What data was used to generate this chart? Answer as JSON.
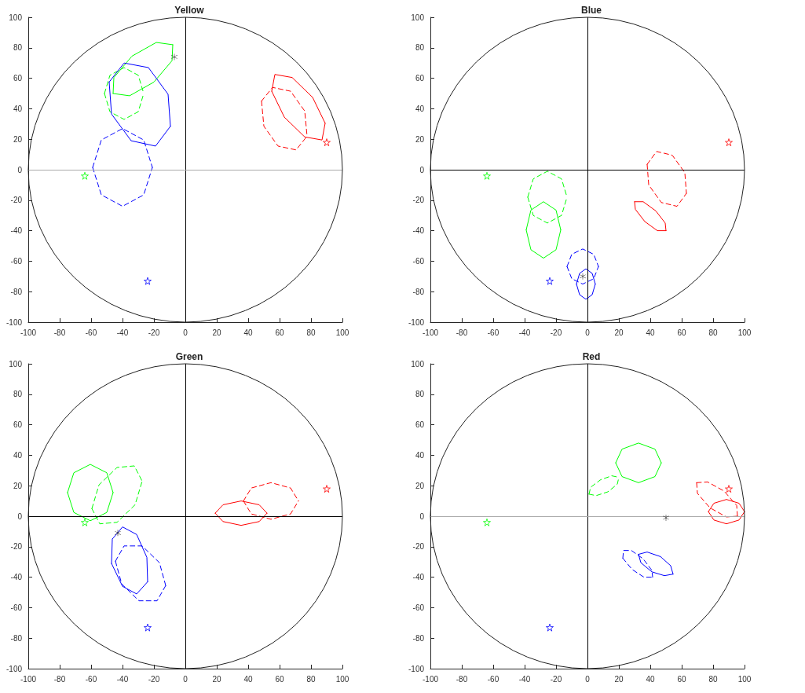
{
  "chart_data": [
    {
      "type": "line",
      "title": "Yellow",
      "xlim": [
        -100,
        100
      ],
      "ylim": [
        -100,
        100
      ],
      "xticks": [
        -100,
        -80,
        -60,
        -40,
        -20,
        0,
        20,
        40,
        60,
        80,
        100
      ],
      "yticks": [
        -100,
        -80,
        -60,
        -40,
        -20,
        0,
        20,
        40,
        60,
        80,
        100
      ],
      "grid": false,
      "ref_lines": [
        {
          "axis": "x",
          "value": 0,
          "color": "#000000"
        },
        {
          "axis": "y",
          "value": 0,
          "color": "#aaaaaa"
        }
      ],
      "series": [
        {
          "type": "line",
          "color": "#00ff00",
          "line_style": "solid",
          "x": [
            -46,
            -45.5,
            -34,
            -18.5,
            -8
          ],
          "values": [
            50,
            60.5,
            74.5,
            83.5,
            82
          ]
        },
        {
          "type": "line",
          "color": "#00ff00",
          "line_style": "solid",
          "x": [
            -46,
            -35.5,
            -20,
            -8.5,
            -8
          ],
          "values": [
            50,
            48.5,
            57.5,
            71.5,
            82
          ]
        },
        {
          "type": "line",
          "color": "#00ff00",
          "line_style": "dashed",
          "x": [
            -51.5,
            -48,
            -39,
            -30,
            -26.5
          ],
          "values": [
            50,
            62,
            67,
            62,
            50
          ]
        },
        {
          "type": "line",
          "color": "#00ff00",
          "line_style": "dashed",
          "x": [
            -51.5,
            -48,
            -39,
            -30,
            -26.5
          ],
          "values": [
            50,
            38,
            33,
            38,
            50
          ]
        },
        {
          "type": "line",
          "color": "#0000ff",
          "line_style": "solid",
          "x": [
            -48.5,
            -39,
            -23.5,
            -11,
            -9.5
          ],
          "values": [
            57.5,
            70,
            67,
            49.5,
            28.5
          ]
        },
        {
          "type": "line",
          "color": "#0000ff",
          "line_style": "solid",
          "x": [
            -48.5,
            -47,
            -34.5,
            -19,
            -9.5
          ],
          "values": [
            57.5,
            36.5,
            19,
            15.5,
            28.5
          ]
        },
        {
          "type": "line",
          "color": "#0000ff",
          "line_style": "dashed",
          "x": [
            -59,
            -53.5,
            -40,
            -26.5,
            -21
          ],
          "values": [
            1.5,
            19.5,
            27,
            19.5,
            1.5
          ]
        },
        {
          "type": "line",
          "color": "#0000ff",
          "line_style": "dashed",
          "x": [
            -59,
            -53.5,
            -40,
            -26.5,
            -21
          ],
          "values": [
            1.5,
            -16.5,
            -24,
            -16.5,
            1.5
          ]
        },
        {
          "type": "line",
          "color": "#ff0000",
          "line_style": "solid",
          "x": [
            55,
            57,
            68,
            81,
            89
          ],
          "values": [
            51.5,
            62.5,
            60.5,
            47.5,
            30.5
          ]
        },
        {
          "type": "line",
          "color": "#ff0000",
          "line_style": "solid",
          "x": [
            55,
            63,
            76,
            87,
            89
          ],
          "values": [
            51.5,
            34.5,
            21.5,
            19.5,
            30.5
          ]
        },
        {
          "type": "line",
          "color": "#ff0000",
          "line_style": "dashed",
          "x": [
            48.5,
            55.5,
            67,
            76,
            77.5
          ],
          "values": [
            45,
            54,
            51.5,
            38.5,
            22
          ]
        },
        {
          "type": "line",
          "color": "#ff0000",
          "line_style": "dashed",
          "x": [
            48.5,
            50,
            59,
            70.5,
            77.5
          ],
          "values": [
            45,
            28.5,
            15.5,
            13,
            22
          ]
        },
        {
          "type": "scatter",
          "marker": "star",
          "colors": [
            "#00ff00",
            "#0000ff",
            "#ff0000"
          ],
          "x": [
            -64,
            -24,
            90
          ],
          "values": [
            -4,
            -73,
            18
          ]
        },
        {
          "type": "scatter",
          "marker": "cross",
          "color": "#000000",
          "x": [
            -7
          ],
          "values": [
            74
          ]
        }
      ]
    },
    {
      "type": "line",
      "title": "Blue",
      "xlim": [
        -100,
        100
      ],
      "ylim": [
        -100,
        100
      ],
      "xticks": [
        -100,
        -80,
        -60,
        -40,
        -20,
        0,
        20,
        40,
        60,
        80,
        100
      ],
      "yticks": [
        -100,
        -80,
        -60,
        -40,
        -20,
        0,
        20,
        40,
        60,
        80,
        100
      ],
      "grid": false,
      "ref_lines": [
        {
          "axis": "x",
          "value": 0,
          "color": "#000000"
        },
        {
          "axis": "y",
          "value": 0,
          "color": "#000000"
        }
      ],
      "series": [
        {
          "type": "line",
          "color": "#00ff00",
          "line_style": "dashed",
          "x": [
            -38,
            -34.5,
            -25.5,
            -16.5,
            -13
          ],
          "values": [
            -18,
            -6,
            -1,
            -6,
            -18
          ]
        },
        {
          "type": "line",
          "color": "#00ff00",
          "line_style": "dashed",
          "x": [
            -38,
            -34.5,
            -25.5,
            -16.5,
            -13
          ],
          "values": [
            -18,
            -30,
            -35,
            -30,
            -18
          ]
        },
        {
          "type": "line",
          "color": "#00ff00",
          "line_style": "solid",
          "x": [
            -39,
            -36,
            -28,
            -20,
            -17
          ],
          "values": [
            -39.5,
            -26.5,
            -21,
            -26.5,
            -39.5
          ]
        },
        {
          "type": "line",
          "color": "#00ff00",
          "line_style": "solid",
          "x": [
            -39,
            -36,
            -28,
            -20,
            -17
          ],
          "values": [
            -39.5,
            -52.5,
            -58,
            -52.5,
            -39.5
          ]
        },
        {
          "type": "line",
          "color": "#0000ff",
          "line_style": "dashed",
          "x": [
            -13,
            -10,
            -3,
            4,
            7
          ],
          "values": [
            -63.5,
            -55.5,
            -52,
            -55.5,
            -63.5
          ]
        },
        {
          "type": "line",
          "color": "#0000ff",
          "line_style": "dashed",
          "x": [
            -13,
            -10,
            -3,
            4,
            7
          ],
          "values": [
            -63.5,
            -71.5,
            -75,
            -71.5,
            -63.5
          ]
        },
        {
          "type": "line",
          "color": "#0000ff",
          "line_style": "solid",
          "x": [
            -7,
            -5,
            -1,
            3,
            5
          ],
          "values": [
            -75,
            -68,
            -65,
            -68,
            -75
          ]
        },
        {
          "type": "line",
          "color": "#0000ff",
          "line_style": "solid",
          "x": [
            -7,
            -5,
            -1,
            3,
            5
          ],
          "values": [
            -75,
            -82,
            -85,
            -82,
            -75
          ]
        },
        {
          "type": "line",
          "color": "#ff0000",
          "line_style": "dashed",
          "x": [
            38,
            44,
            54,
            62,
            63
          ],
          "values": [
            3.5,
            12,
            9.5,
            -2,
            -15.5
          ]
        },
        {
          "type": "line",
          "color": "#ff0000",
          "line_style": "dashed",
          "x": [
            38,
            39,
            47,
            57,
            63
          ],
          "values": [
            3.5,
            -10,
            -21.5,
            -24,
            -15.5
          ]
        },
        {
          "type": "line",
          "color": "#ff0000",
          "line_style": "solid",
          "x": [
            30,
            35.5,
            43.5,
            49.5,
            50
          ],
          "values": [
            -21,
            -21,
            -27,
            -35,
            -40
          ]
        },
        {
          "type": "line",
          "color": "#ff0000",
          "line_style": "solid",
          "x": [
            30,
            30.5,
            36.5,
            44.5,
            50
          ],
          "values": [
            -21,
            -26,
            -34,
            -40,
            -40
          ]
        },
        {
          "type": "scatter",
          "marker": "star",
          "colors": [
            "#00ff00",
            "#0000ff",
            "#ff0000"
          ],
          "x": [
            -64,
            -24,
            90
          ],
          "values": [
            -4,
            -73,
            18
          ]
        },
        {
          "type": "scatter",
          "marker": "cross",
          "color": "#000000",
          "x": [
            -3
          ],
          "values": [
            -70
          ]
        }
      ]
    },
    {
      "type": "line",
      "title": "Green",
      "xlim": [
        -100,
        100
      ],
      "ylim": [
        -100,
        100
      ],
      "xticks": [
        -100,
        -80,
        -60,
        -40,
        -20,
        0,
        20,
        40,
        60,
        80,
        100
      ],
      "yticks": [
        -100,
        -80,
        -60,
        -40,
        -20,
        0,
        20,
        40,
        60,
        80,
        100
      ],
      "grid": false,
      "ref_lines": [
        {
          "axis": "x",
          "value": 0,
          "color": "#000000"
        },
        {
          "axis": "y",
          "value": 0,
          "color": "#000000"
        }
      ],
      "series": [
        {
          "type": "line",
          "color": "#00ff00",
          "line_style": "solid",
          "x": [
            -75,
            -71,
            -60.5,
            -50,
            -46
          ],
          "values": [
            15.5,
            28.5,
            34,
            28.5,
            15.5
          ]
        },
        {
          "type": "line",
          "color": "#00ff00",
          "line_style": "solid",
          "x": [
            -75,
            -71,
            -60.5,
            -50,
            -46
          ],
          "values": [
            15.5,
            2.5,
            -3,
            2.5,
            15.5
          ]
        },
        {
          "type": "line",
          "color": "#00ff00",
          "line_style": "dashed",
          "x": [
            -59.5,
            -55,
            -43.5,
            -32.5,
            -27.5
          ],
          "values": [
            5,
            20.5,
            32,
            33,
            23
          ]
        },
        {
          "type": "line",
          "color": "#00ff00",
          "line_style": "dashed",
          "x": [
            -59.5,
            -54.5,
            -43.5,
            -32,
            -27.5
          ],
          "values": [
            5,
            -5,
            -4,
            7.5,
            23
          ]
        },
        {
          "type": "line",
          "color": "#0000ff",
          "line_style": "solid",
          "x": [
            -47,
            -46.5,
            -40,
            -31,
            -24.5,
            -24
          ],
          "values": [
            -31,
            -15,
            -7,
            -12,
            -27,
            -43
          ]
        },
        {
          "type": "line",
          "color": "#0000ff",
          "line_style": "solid",
          "x": [
            -47,
            -40,
            -31,
            -24
          ],
          "values": [
            -31,
            -46,
            -51,
            -43
          ]
        },
        {
          "type": "line",
          "color": "#0000ff",
          "line_style": "dashed",
          "x": [
            -44.5,
            -39,
            -27.5,
            -16.5,
            -12.5
          ],
          "values": [
            -29.5,
            -19.5,
            -19.5,
            -30.5,
            -45.5
          ]
        },
        {
          "type": "line",
          "color": "#0000ff",
          "line_style": "dashed",
          "x": [
            -44.5,
            -40.5,
            -29.5,
            -18,
            -12.5
          ],
          "values": [
            -29.5,
            -44.5,
            -55.5,
            -55.5,
            -45.5
          ]
        },
        {
          "type": "line",
          "color": "#ff0000",
          "line_style": "solid",
          "x": [
            19,
            24,
            35.5,
            47,
            52
          ],
          "values": [
            2,
            7.5,
            10,
            7.5,
            2
          ]
        },
        {
          "type": "line",
          "color": "#ff0000",
          "line_style": "solid",
          "x": [
            19,
            24,
            35.5,
            47,
            52
          ],
          "values": [
            2,
            -3.5,
            -6,
            -3.5,
            2
          ]
        },
        {
          "type": "line",
          "color": "#ff0000",
          "line_style": "dashed",
          "x": [
            37,
            42,
            54.5,
            67,
            72
          ],
          "values": [
            10,
            18.5,
            22,
            18.5,
            10
          ]
        },
        {
          "type": "line",
          "color": "#ff0000",
          "line_style": "dashed",
          "x": [
            37,
            42,
            54.5,
            67,
            72
          ],
          "values": [
            10,
            1.5,
            -2,
            1.5,
            10
          ]
        },
        {
          "type": "scatter",
          "marker": "star",
          "colors": [
            "#00ff00",
            "#0000ff",
            "#ff0000"
          ],
          "x": [
            -64,
            -24,
            90
          ],
          "values": [
            -4,
            -73,
            18
          ]
        },
        {
          "type": "scatter",
          "marker": "cross",
          "color": "#000000",
          "x": [
            -43
          ],
          "values": [
            -11
          ]
        }
      ]
    },
    {
      "type": "line",
      "title": "Red",
      "xlim": [
        -100,
        100
      ],
      "ylim": [
        -100,
        100
      ],
      "xticks": [
        -100,
        -80,
        -60,
        -40,
        -20,
        0,
        20,
        40,
        60,
        80,
        100
      ],
      "yticks": [
        -100,
        -80,
        -60,
        -40,
        -20,
        0,
        20,
        40,
        60,
        80,
        100
      ],
      "grid": false,
      "ref_lines": [
        {
          "axis": "x",
          "value": 0,
          "color": "#000000"
        },
        {
          "axis": "y",
          "value": 0,
          "color": "#aaaaaa"
        }
      ],
      "series": [
        {
          "type": "line",
          "color": "#00ff00",
          "line_style": "solid",
          "x": [
            18,
            22,
            32.5,
            43,
            47
          ],
          "values": [
            35,
            44,
            48,
            44,
            35
          ]
        },
        {
          "type": "line",
          "color": "#00ff00",
          "line_style": "solid",
          "x": [
            18,
            22,
            32.5,
            43,
            47
          ],
          "values": [
            35,
            26,
            22,
            26,
            35
          ]
        },
        {
          "type": "line",
          "color": "#00ff00",
          "line_style": "dashed",
          "x": [
            1,
            2,
            8.5,
            15.5,
            20
          ],
          "values": [
            14.5,
            19,
            24,
            26.5,
            25.5
          ]
        },
        {
          "type": "line",
          "color": "#00ff00",
          "line_style": "dashed",
          "x": [
            1,
            5.5,
            13,
            19,
            20
          ],
          "values": [
            14.5,
            13.5,
            16,
            21,
            25.5
          ]
        },
        {
          "type": "line",
          "color": "#0000ff",
          "line_style": "solid",
          "x": [
            32.5,
            38,
            46.5,
            53,
            54.5
          ],
          "values": [
            -25,
            -23.5,
            -26.5,
            -32.5,
            -38
          ]
        },
        {
          "type": "line",
          "color": "#0000ff",
          "line_style": "solid",
          "x": [
            32.5,
            34,
            41,
            49,
            54.5
          ],
          "values": [
            -25,
            -30.5,
            -36.5,
            -39,
            -38
          ]
        },
        {
          "type": "line",
          "color": "#0000ff",
          "line_style": "dashed",
          "x": [
            22.5,
            23,
            28,
            35.5,
            41,
            41.5
          ],
          "values": [
            -27.5,
            -22.5,
            -22.5,
            -28,
            -35.5,
            -40
          ]
        },
        {
          "type": "line",
          "color": "#0000ff",
          "line_style": "dashed",
          "x": [
            22.5,
            28.5,
            36,
            41.5
          ],
          "values": [
            -27.5,
            -35,
            -40,
            -40
          ]
        },
        {
          "type": "line",
          "color": "#ff0000",
          "line_style": "solid",
          "x": [
            77,
            80.5,
            88.5,
            96.5,
            100
          ],
          "values": [
            3,
            8.5,
            11,
            8.5,
            3
          ]
        },
        {
          "type": "line",
          "color": "#ff0000",
          "line_style": "solid",
          "x": [
            77,
            80.5,
            88.5,
            96.5,
            100
          ],
          "values": [
            3,
            -2.5,
            -5,
            -2.5,
            3
          ]
        },
        {
          "type": "line",
          "color": "#ff0000",
          "line_style": "dashed",
          "x": [
            69.5,
            76.5,
            87,
            95,
            95.5
          ],
          "values": [
            22,
            22.5,
            16.5,
            7,
            0
          ]
        },
        {
          "type": "line",
          "color": "#ff0000",
          "line_style": "dashed",
          "x": [
            69.5,
            70,
            78,
            88.5,
            95.5
          ],
          "values": [
            22,
            15,
            5.5,
            -0.5,
            0
          ]
        },
        {
          "type": "scatter",
          "marker": "star",
          "colors": [
            "#00ff00",
            "#0000ff",
            "#ff0000"
          ],
          "x": [
            -64,
            -24,
            90
          ],
          "values": [
            -4,
            -73,
            18
          ]
        },
        {
          "type": "scatter",
          "marker": "cross",
          "color": "#000000",
          "x": [
            50
          ],
          "values": [
            -1
          ]
        }
      ]
    }
  ]
}
